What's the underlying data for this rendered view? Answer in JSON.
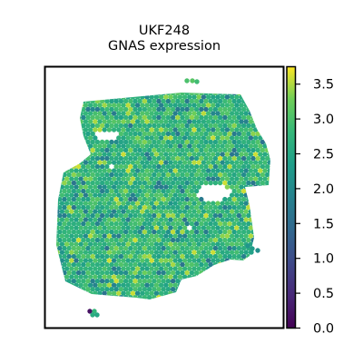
{
  "chart_data": {
    "type": "heatmap",
    "title": "UKF248",
    "subtitle": "GNAS expression",
    "colormap": "viridis",
    "colorbar": {
      "min": 0.0,
      "max": 3.75,
      "ticks": [
        {
          "value": 0.0,
          "label": "0.0"
        },
        {
          "value": 0.5,
          "label": "0.5"
        },
        {
          "value": 1.0,
          "label": "1.0"
        },
        {
          "value": 1.5,
          "label": "1.5"
        },
        {
          "value": 2.0,
          "label": "2.0"
        },
        {
          "value": 2.5,
          "label": "2.5"
        },
        {
          "value": 3.0,
          "label": "3.0"
        },
        {
          "value": 3.5,
          "label": "3.5"
        }
      ]
    },
    "spot_values": {
      "typical_range": [
        1.6,
        3.6
      ],
      "dominant_range": [
        2.4,
        3.1
      ]
    },
    "grid": false,
    "axes_ticks": false
  }
}
